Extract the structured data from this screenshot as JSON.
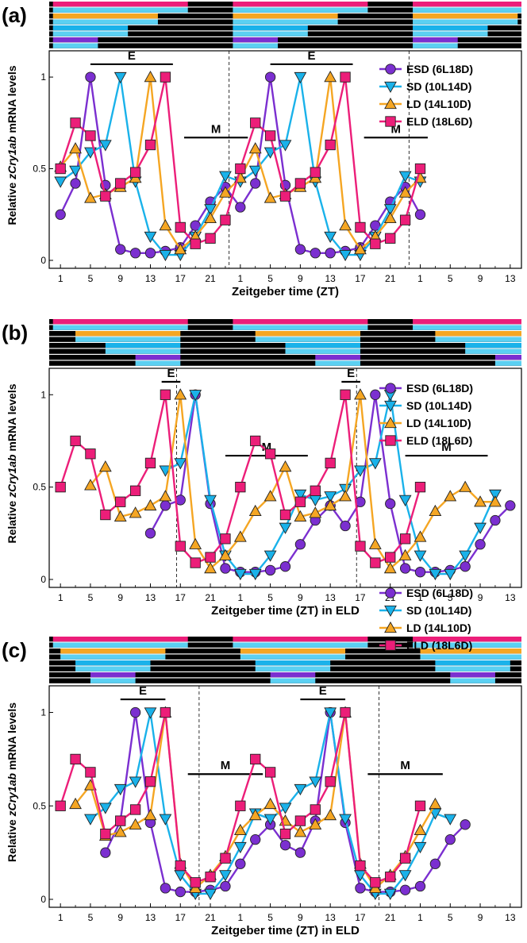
{
  "figure": {
    "xlabel_a": "Zeitgeber time (ZT)",
    "xlabel_bc": "Zeitgeber time (ZT) in ELD",
    "ylabel_pre": "Relative ",
    "ylabel_gene": "zCry1ab",
    "ylabel_post": " mRNA levels"
  },
  "colors": {
    "ESD": "#7b2fd0",
    "SD": "#1ab2ea",
    "LD": "#f5a623",
    "ELD": "#ec1e79",
    "light_bar": "#5bd0f2",
    "dark_bar": "#000000",
    "grey_bar": "#8a8a8a",
    "pink_bar": "#ec2a82",
    "yellow_bar": "#c8c84a"
  },
  "chart_data": [
    {
      "panel_label": "(a)",
      "type": "line",
      "x_tick_labels": [
        "1",
        "5",
        "9",
        "13",
        "17",
        "21",
        "1",
        "5",
        "9",
        "13",
        "17",
        "21",
        "1",
        "5",
        "9",
        "13"
      ],
      "ylim": [
        0,
        1.1
      ],
      "y_ticks": [
        0,
        0.5,
        1
      ],
      "y_tick_labels": [
        "0",
        "0.5",
        "1"
      ],
      "annotations": [
        {
          "text": "E",
          "x_start": 4,
          "x_end": 15
        },
        {
          "text": "M",
          "x_start": 16.5,
          "x_end": 25
        },
        {
          "text": "E",
          "x_start": 28,
          "x_end": 39
        },
        {
          "text": "M",
          "x_start": 40.5,
          "x_end": 49
        }
      ],
      "dashed_lines_x": [
        0,
        24,
        48
      ],
      "legend": [
        "ESD (6L18D)",
        "SD (10L14D)",
        "LD  (14L10D)",
        "ELD (18L6D)"
      ],
      "series": [
        {
          "name": "ESD (6L18D)",
          "x": [
            0,
            2,
            4,
            6,
            8,
            10,
            12,
            14,
            16,
            18,
            20,
            22,
            24,
            26,
            28,
            30,
            32,
            34,
            36,
            38,
            40,
            42,
            44,
            46,
            48
          ],
          "values": [
            0.25,
            0.42,
            1.0,
            0.41,
            0.06,
            0.04,
            0.04,
            0.05,
            0.07,
            0.19,
            0.32,
            0.4,
            0.29,
            0.42,
            1.0,
            0.41,
            0.06,
            0.04,
            0.04,
            0.05,
            0.07,
            0.19,
            0.32,
            0.4,
            0.25
          ]
        },
        {
          "name": "SD (10L14D)",
          "x": [
            0,
            2,
            4,
            6,
            8,
            10,
            12,
            14,
            16,
            18,
            20,
            22,
            24,
            26,
            28,
            30,
            32,
            34,
            36,
            38,
            40,
            42,
            44,
            46,
            48
          ],
          "values": [
            0.43,
            0.49,
            0.59,
            0.63,
            1.0,
            0.43,
            0.13,
            0.03,
            0.03,
            0.13,
            0.28,
            0.46,
            0.43,
            0.49,
            0.59,
            0.63,
            1.0,
            0.43,
            0.13,
            0.03,
            0.03,
            0.13,
            0.28,
            0.46,
            0.43
          ]
        },
        {
          "name": "LD  (14L10D)",
          "x": [
            0,
            2,
            4,
            6,
            8,
            10,
            12,
            14,
            16,
            18,
            20,
            22,
            24,
            26,
            28,
            30,
            32,
            34,
            36,
            38,
            40,
            42,
            44,
            46,
            48
          ],
          "values": [
            0.51,
            0.61,
            0.34,
            0.36,
            0.4,
            0.45,
            1.0,
            0.19,
            0.06,
            0.13,
            0.23,
            0.37,
            0.45,
            0.61,
            0.34,
            0.36,
            0.4,
            0.45,
            1.0,
            0.19,
            0.06,
            0.13,
            0.23,
            0.37,
            0.45
          ]
        },
        {
          "name": "ELD (18L6D)",
          "x": [
            0,
            2,
            4,
            6,
            8,
            10,
            12,
            14,
            16,
            18,
            20,
            22,
            24,
            26,
            28,
            30,
            32,
            34,
            36,
            38,
            40,
            42,
            44,
            46,
            48
          ],
          "values": [
            0.5,
            0.75,
            0.68,
            0.35,
            0.42,
            0.48,
            0.63,
            1.0,
            0.18,
            0.09,
            0.12,
            0.22,
            0.5,
            0.75,
            0.68,
            0.35,
            0.42,
            0.48,
            0.63,
            1.0,
            0.18,
            0.09,
            0.12,
            0.22,
            0.5
          ]
        }
      ]
    },
    {
      "panel_label": "(b)",
      "type": "line",
      "x_tick_labels": [
        "1",
        "5",
        "9",
        "13",
        "17",
        "21",
        "1",
        "5",
        "9",
        "13",
        "17",
        "21",
        "1",
        "5",
        "9",
        "13"
      ],
      "ylim": [
        0,
        1.1
      ],
      "y_ticks": [
        0,
        0.5,
        1
      ],
      "y_tick_labels": [
        "0",
        "0.5",
        "1"
      ],
      "annotations": [
        {
          "text": "E",
          "x_start": 13.5,
          "x_end": 16
        },
        {
          "text": "M",
          "x_start": 22,
          "x_end": 33
        },
        {
          "text": "E",
          "x_start": 37.5,
          "x_end": 40
        },
        {
          "text": "M",
          "x_start": 46,
          "x_end": 57
        }
      ],
      "dashed_lines_x": [
        17,
        41
      ],
      "legend": [
        "ESD (6L18D)",
        "SD (10L14D)",
        "LD  (14L10D)",
        "ELD (18L6D)"
      ],
      "series": [
        {
          "name": "ESD (6L18D)",
          "x": [
            12,
            14,
            16,
            18,
            20,
            22,
            24,
            26,
            28,
            30,
            32,
            34,
            36,
            38,
            40,
            42,
            44,
            46,
            48,
            50,
            52,
            54,
            56,
            58,
            60
          ],
          "values": [
            0.25,
            0.4,
            0.43,
            1.0,
            0.41,
            0.06,
            0.04,
            0.04,
            0.05,
            0.07,
            0.19,
            0.32,
            0.4,
            0.29,
            0.42,
            1.0,
            0.41,
            0.06,
            0.04,
            0.04,
            0.05,
            0.07,
            0.19,
            0.32,
            0.4
          ]
        },
        {
          "name": "SD (10L14D)",
          "x": [
            14,
            16,
            18,
            20,
            22,
            24,
            26,
            28,
            30,
            32,
            34,
            36,
            38,
            40,
            42,
            44,
            46,
            48,
            50,
            52,
            54,
            56,
            58
          ],
          "values": [
            0.59,
            0.63,
            1.0,
            0.43,
            0.13,
            0.03,
            0.03,
            0.13,
            0.28,
            0.46,
            0.43,
            0.45,
            0.49,
            0.59,
            0.63,
            1.0,
            0.43,
            0.13,
            0.03,
            0.03,
            0.13,
            0.28,
            0.46
          ]
        },
        {
          "name": "LD  (14L10D)",
          "x": [
            4,
            6,
            8,
            10,
            12,
            14,
            16,
            18,
            20,
            22,
            24,
            26,
            28,
            30,
            32,
            34,
            36,
            38,
            40,
            42,
            44,
            46,
            48,
            50,
            52,
            54,
            56,
            58
          ],
          "values": [
            0.51,
            0.61,
            0.34,
            0.36,
            0.4,
            0.45,
            1.0,
            0.19,
            0.06,
            0.13,
            0.23,
            0.37,
            0.45,
            0.61,
            0.34,
            0.36,
            0.4,
            0.45,
            1.0,
            0.19,
            0.06,
            0.13,
            0.23,
            0.37,
            0.45,
            0.5,
            0.42,
            0.42
          ]
        },
        {
          "name": "ELD (18L6D)",
          "x": [
            0,
            2,
            4,
            6,
            8,
            10,
            12,
            14,
            16,
            18,
            20,
            22,
            24,
            26,
            28,
            30,
            32,
            34,
            36,
            38,
            40,
            42,
            44,
            46,
            48
          ],
          "values": [
            0.5,
            0.75,
            0.68,
            0.35,
            0.42,
            0.48,
            0.63,
            1.0,
            0.18,
            0.09,
            0.12,
            0.22,
            0.5,
            0.75,
            0.68,
            0.35,
            0.42,
            0.48,
            0.63,
            1.0,
            0.18,
            0.09,
            0.12,
            0.22,
            0.5
          ]
        }
      ]
    },
    {
      "panel_label": "(c)",
      "type": "line",
      "x_tick_labels": [
        "1",
        "5",
        "9",
        "13",
        "17",
        "21",
        "1",
        "5",
        "9",
        "13",
        "17",
        "21",
        "1",
        "5",
        "9",
        "13"
      ],
      "ylim": [
        0,
        1.1
      ],
      "y_ticks": [
        0,
        0.5,
        1
      ],
      "y_tick_labels": [
        "0",
        "0.5",
        "1"
      ],
      "annotations": [
        {
          "text": "E",
          "x_start": 8,
          "x_end": 14
        },
        {
          "text": "M",
          "x_start": 17,
          "x_end": 27
        },
        {
          "text": "E",
          "x_start": 32,
          "x_end": 38
        },
        {
          "text": "M",
          "x_start": 41,
          "x_end": 51
        }
      ],
      "dashed_lines_x": [
        20,
        44
      ],
      "legend": [
        "ESD (6L18D)",
        "SD (10L14D)",
        "LD  (14L10D)",
        "ELD (18L6D)"
      ],
      "series": [
        {
          "name": "ESD (6L18D)",
          "x": [
            6,
            8,
            10,
            12,
            14,
            16,
            18,
            20,
            22,
            24,
            26,
            28,
            30,
            32,
            34,
            36,
            38,
            40,
            42,
            44,
            46,
            48,
            50,
            52,
            54
          ],
          "values": [
            0.25,
            0.42,
            1.0,
            0.41,
            0.06,
            0.04,
            0.04,
            0.05,
            0.07,
            0.19,
            0.32,
            0.4,
            0.29,
            0.25,
            0.42,
            1.0,
            0.41,
            0.06,
            0.04,
            0.04,
            0.05,
            0.07,
            0.19,
            0.32,
            0.4
          ]
        },
        {
          "name": "SD (10L14D)",
          "x": [
            4,
            6,
            8,
            10,
            12,
            14,
            16,
            18,
            20,
            22,
            24,
            26,
            28,
            30,
            32,
            34,
            36,
            38,
            40,
            42,
            44,
            46,
            48,
            50,
            52
          ],
          "values": [
            0.43,
            0.49,
            0.59,
            0.63,
            1.0,
            0.43,
            0.13,
            0.03,
            0.03,
            0.13,
            0.28,
            0.46,
            0.43,
            0.49,
            0.59,
            0.63,
            1.0,
            0.43,
            0.13,
            0.03,
            0.03,
            0.13,
            0.28,
            0.46,
            0.43
          ]
        },
        {
          "name": "LD  (14L10D)",
          "x": [
            2,
            4,
            6,
            8,
            10,
            12,
            14,
            16,
            18,
            20,
            22,
            24,
            26,
            28,
            30,
            32,
            34,
            36,
            38,
            40,
            42,
            44,
            46,
            48,
            50
          ],
          "values": [
            0.51,
            0.61,
            0.34,
            0.36,
            0.4,
            0.45,
            1.0,
            0.19,
            0.06,
            0.13,
            0.23,
            0.37,
            0.45,
            0.51,
            0.42,
            0.36,
            0.4,
            0.45,
            1.0,
            0.19,
            0.06,
            0.13,
            0.23,
            0.37,
            0.51
          ]
        },
        {
          "name": "ELD (18L6D)",
          "x": [
            0,
            2,
            4,
            6,
            8,
            10,
            12,
            14,
            16,
            18,
            20,
            22,
            24,
            26,
            28,
            30,
            32,
            34,
            36,
            38,
            40,
            42,
            44,
            46,
            48
          ],
          "values": [
            0.5,
            0.75,
            0.68,
            0.35,
            0.42,
            0.48,
            0.63,
            1.0,
            0.18,
            0.09,
            0.12,
            0.22,
            0.5,
            0.75,
            0.68,
            0.35,
            0.42,
            0.48,
            0.63,
            1.0,
            0.18,
            0.09,
            0.12,
            0.22,
            0.5
          ]
        }
      ]
    }
  ]
}
